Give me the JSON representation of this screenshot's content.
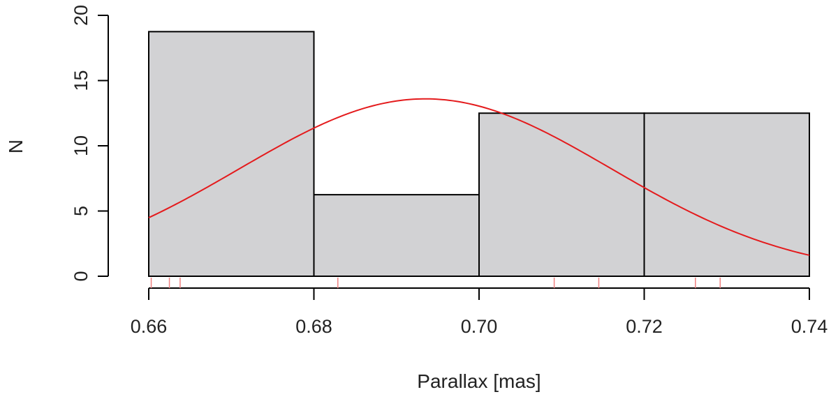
{
  "chart_data": {
    "type": "bar",
    "title": "",
    "xlabel": "Parallax [mas]",
    "ylabel": "N",
    "xlim": [
      0.66,
      0.74
    ],
    "ylim": [
      0,
      20
    ],
    "x_ticks": [
      "0.66",
      "0.68",
      "0.70",
      "0.72",
      "0.74"
    ],
    "y_ticks": [
      "0",
      "5",
      "10",
      "15",
      "20"
    ],
    "bins": [
      {
        "from": 0.66,
        "to": 0.68,
        "value": 18.75
      },
      {
        "from": 0.68,
        "to": 0.7,
        "value": 6.25
      },
      {
        "from": 0.7,
        "to": 0.72,
        "value": 12.5
      },
      {
        "from": 0.72,
        "to": 0.74,
        "value": 12.5
      }
    ],
    "curve": {
      "type": "normal",
      "mean": 0.6935,
      "sd": 0.0225,
      "scale": 0.7669
    },
    "rug": [
      0.6603,
      0.6625,
      0.6638,
      0.6829,
      0.7091,
      0.7145,
      0.7262,
      0.7292
    ],
    "colors": {
      "bar_fill": "#d2d2d4",
      "bar_stroke": "#000000",
      "curve": "#e41a1c",
      "rug": "#f08080",
      "axis": "#000000"
    }
  }
}
